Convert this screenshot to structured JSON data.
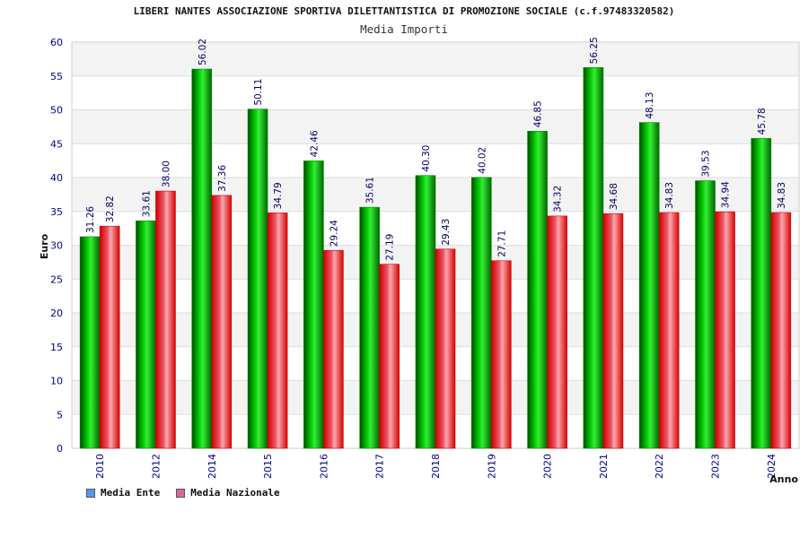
{
  "chart_data": {
    "type": "bar",
    "title": "LIBERI NANTES ASSOCIAZIONE SPORTIVA DILETTANTISTICA DI PROMOZIONE SOCIALE (c.f.97483320582)",
    "subtitle": "Media Importi",
    "xlabel": "Anno",
    "ylabel": "Euro",
    "ylim": [
      0,
      60
    ],
    "yticks": [
      0,
      5,
      10,
      15,
      20,
      25,
      30,
      35,
      40,
      45,
      50,
      55,
      60
    ],
    "grid": true,
    "legend_position": "bottom-left",
    "categories": [
      "2010",
      "2012",
      "2014",
      "2015",
      "2016",
      "2017",
      "2018",
      "2019",
      "2020",
      "2021",
      "2022",
      "2023",
      "2024"
    ],
    "series": [
      {
        "name": "Media Ente",
        "color": "#00aa00",
        "legend_color": "#5599ee",
        "values": [
          31.26,
          33.61,
          56.02,
          50.11,
          42.46,
          35.61,
          40.3,
          40.02,
          46.85,
          56.25,
          48.13,
          39.53,
          45.78
        ],
        "labels": [
          "31.26",
          "33.61",
          "56.02",
          "50.11",
          "42.46",
          "35.61",
          "40.30",
          "40.02",
          "46.85",
          "56.25",
          "48.13",
          "39.53",
          "45.78"
        ]
      },
      {
        "name": "Media Nazionale",
        "color": "#ee1111",
        "legend_color": "#dd6699",
        "values": [
          32.82,
          38.0,
          37.36,
          34.79,
          29.24,
          27.19,
          29.43,
          27.71,
          34.32,
          34.68,
          34.83,
          34.94,
          34.83
        ],
        "labels": [
          "32.82",
          "38.00",
          "37.36",
          "34.79",
          "29.24",
          "27.19",
          "29.43",
          "27.71",
          "34.32",
          "34.68",
          "34.83",
          "34.94",
          "34.83"
        ]
      }
    ]
  }
}
